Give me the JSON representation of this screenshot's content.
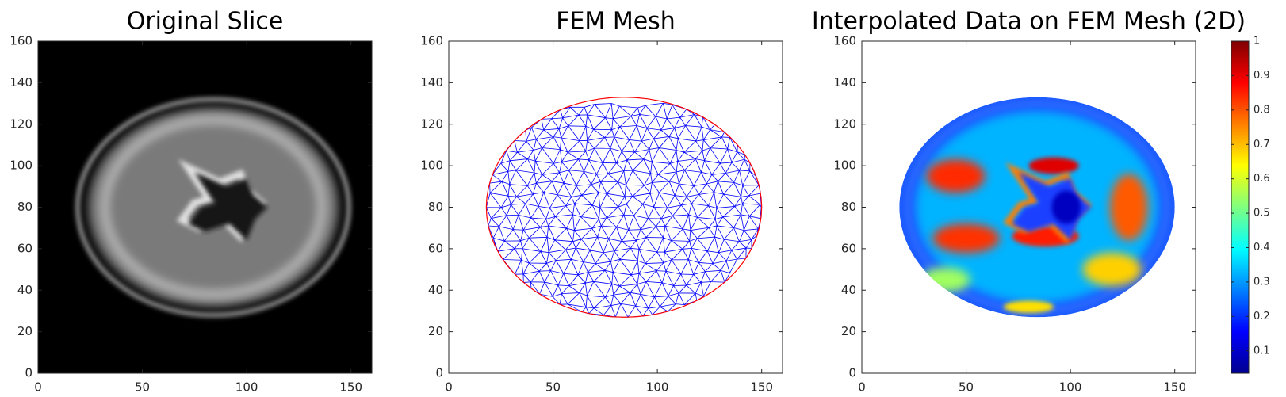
{
  "chart_data": [
    {
      "type": "image",
      "title": "Original Slice",
      "xlim": [
        0,
        160
      ],
      "ylim": [
        0,
        160
      ],
      "xticks": [
        0,
        50,
        100,
        150
      ],
      "yticks": [
        0,
        20,
        40,
        60,
        80,
        100,
        120,
        140,
        160
      ]
    },
    {
      "type": "mesh",
      "title": "FEM Mesh",
      "xlim": [
        0,
        160
      ],
      "ylim": [
        0,
        160
      ],
      "xticks": [
        0,
        50,
        100,
        150
      ],
      "yticks": [
        0,
        20,
        40,
        60,
        80,
        100,
        120,
        140,
        160
      ],
      "edge_color": "#0000ff",
      "boundary_color": "#ff0000"
    },
    {
      "type": "heatmap",
      "title": "Interpolated Data on FEM Mesh (2D)",
      "xlim": [
        0,
        160
      ],
      "ylim": [
        0,
        160
      ],
      "xticks": [
        0,
        50,
        100,
        150
      ],
      "yticks": [
        0,
        20,
        40,
        60,
        80,
        100,
        120,
        140,
        160
      ],
      "colorbar": {
        "lim": [
          0.035,
          1
        ],
        "ticks": [
          0.1,
          0.2,
          0.3,
          0.4,
          0.5,
          0.6,
          0.7,
          0.8,
          0.9,
          1
        ],
        "colormap": "jet"
      }
    }
  ]
}
